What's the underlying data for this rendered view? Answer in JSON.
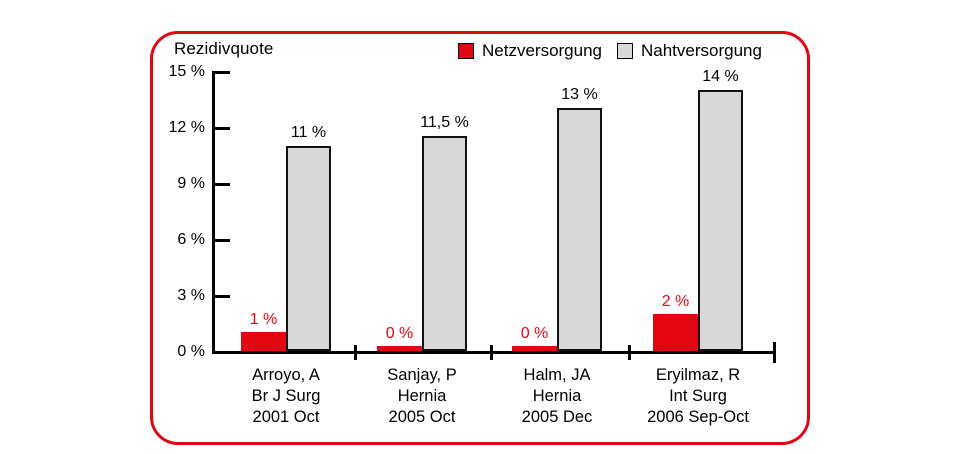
{
  "frame": {
    "border_color": "#e30613"
  },
  "chart_data": {
    "type": "bar",
    "title": "Rezidivquote",
    "categories": [
      {
        "lines": [
          "Arroyo, A",
          "Br J Surg",
          "2001 Oct"
        ]
      },
      {
        "lines": [
          "Sanjay, P",
          "Hernia",
          "2005 Oct"
        ]
      },
      {
        "lines": [
          "Halm, JA",
          "Hernia",
          "2005 Dec"
        ]
      },
      {
        "lines": [
          "Eryilmaz, R",
          "Int Surg",
          "2006 Sep-Oct"
        ]
      }
    ],
    "series": [
      {
        "name": "Netzversorgung",
        "color": "#e30613",
        "values": [
          1,
          0,
          0,
          2
        ],
        "value_labels": [
          "1 %",
          "0 %",
          "0 %",
          "2 %"
        ],
        "label_color": "#e30613"
      },
      {
        "name": "Nahtversorgung",
        "color": "#d8d8d8",
        "values": [
          11,
          11.5,
          13,
          14
        ],
        "value_labels": [
          "11 %",
          "11,5 %",
          "13 %",
          "14 %"
        ],
        "label_color": "#000000"
      }
    ],
    "ylabel": "",
    "xlabel": "",
    "ylim": [
      0,
      15
    ],
    "yticks": [
      0,
      3,
      6,
      9,
      12,
      15
    ],
    "ytick_labels": [
      "0 %",
      "3 %",
      "6 %",
      "9 %",
      "12 %",
      "15 %"
    ],
    "legend_position": "top-right",
    "grid": false
  }
}
